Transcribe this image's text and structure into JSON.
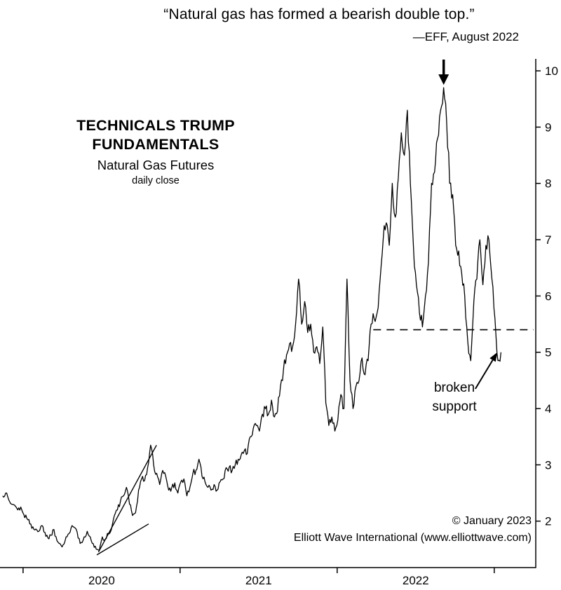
{
  "header": {
    "quote": "“Natural gas has formed a bearish double top.”",
    "attribution": "—EFF, August 2022"
  },
  "title_block": {
    "line1": "TECHNICALS TRUMP",
    "line2": "FUNDAMENTALS",
    "subtitle": "Natural Gas Futures",
    "daily_close": "daily close"
  },
  "annotations": {
    "broken_support": {
      "line1": "broken",
      "line2": "support"
    }
  },
  "footer": {
    "copyright": "© January 2023",
    "credit": "Elliott Wave International (www.elliottwave.com)"
  },
  "chart_data": {
    "type": "line",
    "title": "Natural Gas Futures",
    "subtitle": "daily close",
    "xlabel": "",
    "ylabel": "",
    "grid": false,
    "legend": "none",
    "line_color": "#000000",
    "background": "#ffffff",
    "xlim": [
      2019.88,
      2023.26
    ],
    "ylim": [
      1.15,
      10.2
    ],
    "y_ticks": [
      2,
      3,
      4,
      5,
      6,
      7,
      8,
      9,
      10
    ],
    "x_year_ticks": [
      2020,
      2021,
      2022,
      2023
    ],
    "x_year_labels": [
      {
        "label": "2020",
        "x": 2020.5
      },
      {
        "label": "2021",
        "x": 2021.5
      },
      {
        "label": "2022",
        "x": 2022.5
      }
    ],
    "x_start_year": 2019.87,
    "x_step_years": 0.01923077,
    "values": [
      2.45,
      2.5,
      2.38,
      2.3,
      2.28,
      2.2,
      2.25,
      2.12,
      2.05,
      1.95,
      1.9,
      1.86,
      1.82,
      1.92,
      1.8,
      1.7,
      1.75,
      1.85,
      1.65,
      1.6,
      1.58,
      1.72,
      1.78,
      1.92,
      1.88,
      1.7,
      1.62,
      1.72,
      1.82,
      1.72,
      1.6,
      1.5,
      1.48,
      1.72,
      1.68,
      1.78,
      1.85,
      2.1,
      2.2,
      2.35,
      2.45,
      2.6,
      2.3,
      2.1,
      2.15,
      2.55,
      2.75,
      2.72,
      2.95,
      3.35,
      3.0,
      2.85,
      2.65,
      2.9,
      2.8,
      2.55,
      2.6,
      2.68,
      2.5,
      2.7,
      2.75,
      2.45,
      2.6,
      2.85,
      2.9,
      3.1,
      2.8,
      2.7,
      2.6,
      2.55,
      2.65,
      2.55,
      2.7,
      2.75,
      2.95,
      2.96,
      2.9,
      3.0,
      3.1,
      3.18,
      3.25,
      3.2,
      3.5,
      3.65,
      3.7,
      3.6,
      3.9,
      4.0,
      3.9,
      4.15,
      3.85,
      3.95,
      4.4,
      4.7,
      4.95,
      5.15,
      5.1,
      5.5,
      6.3,
      5.5,
      5.9,
      5.35,
      5.5,
      5.0,
      5.1,
      4.8,
      5.45,
      4.1,
      3.7,
      3.85,
      3.6,
      3.8,
      4.25,
      4.0,
      6.3,
      4.5,
      4.0,
      4.4,
      4.5,
      4.9,
      4.6,
      4.85,
      5.5,
      5.6,
      5.7,
      6.3,
      7.0,
      7.3,
      6.9,
      8.0,
      7.4,
      8.1,
      8.9,
      8.5,
      9.3,
      8.0,
      6.9,
      6.2,
      5.7,
      5.45,
      6.0,
      6.6,
      8.0,
      8.2,
      8.8,
      9.3,
      9.7,
      9.1,
      8.0,
      7.8,
      6.9,
      6.8,
      6.4,
      6.0,
      5.2,
      4.85,
      5.9,
      6.3,
      7.0,
      6.2,
      6.9,
      7.0,
      6.3,
      5.6,
      4.85,
      5.0
    ],
    "support_line": {
      "value": 5.4,
      "x_start": 2022.23,
      "x_end": 2023.25,
      "style": "dashed"
    },
    "trendlines": [
      {
        "name": "wedge-upper-trendline",
        "x1": 2020.48,
        "y1": 1.45,
        "x2": 2020.85,
        "y2": 3.35
      },
      {
        "name": "wedge-lower-trendline",
        "x1": 2020.47,
        "y1": 1.4,
        "x2": 2020.8,
        "y2": 1.95
      }
    ],
    "down_arrow": {
      "x": 2022.678,
      "from_value": 10.2,
      "to_value": 9.75
    },
    "broken_support_arrow": {
      "x1": 2022.88,
      "y1": 4.35,
      "x2": 2023.02,
      "y2": 5.0
    }
  }
}
